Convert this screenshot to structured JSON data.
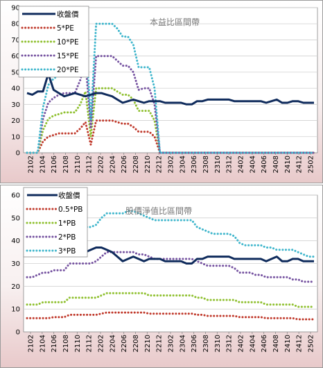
{
  "colors": {
    "close": "#0f2b5c",
    "m1": "#c0392b",
    "m2": "#8fc02f",
    "m3": "#7552a0",
    "m4": "#3fb6cc",
    "bg_top": "#ffffff",
    "bg_bottom": "#e8c9ca"
  },
  "chart_data": [
    {
      "type": "line",
      "title": "本益比區間帶",
      "xlabel": "",
      "ylabel": "",
      "ylim": [
        0,
        90
      ],
      "yticks": [
        "0",
        "10",
        "20",
        "30",
        "40",
        "50",
        "60",
        "70",
        "80",
        "90"
      ],
      "xticks": [
        "2102",
        "2104",
        "2106",
        "2108",
        "2110",
        "2112",
        "2202",
        "2204",
        "2206",
        "2208",
        "2210",
        "2212",
        "2302",
        "2304",
        "2306",
        "2308",
        "2310",
        "2312",
        "2402",
        "2404",
        "2406",
        "2408",
        "2410",
        "2412",
        "2502"
      ],
      "legend_position": "top-left",
      "grid": true,
      "series": [
        {
          "name": "收盤價",
          "color_key": "close",
          "style": "solid",
          "values": [
            37,
            36,
            38,
            38,
            49,
            39,
            37,
            35,
            36,
            37,
            36,
            35,
            36,
            37,
            37,
            36,
            35,
            33,
            31,
            32,
            33,
            32,
            31,
            32,
            32,
            32,
            31,
            31,
            31,
            31,
            30,
            30,
            32,
            32,
            33,
            33,
            33,
            33,
            33,
            32,
            32,
            32,
            32,
            32,
            32,
            31,
            32,
            33,
            31,
            31,
            32,
            32,
            31,
            31,
            31
          ]
        },
        {
          "name": "5*PE",
          "color_key": "m1",
          "style": "dot",
          "values": [
            0,
            0,
            0,
            7,
            10,
            11,
            12,
            12,
            12,
            12,
            15,
            19,
            5,
            20,
            20,
            20,
            20,
            19,
            18,
            18,
            16,
            13,
            13,
            13,
            10,
            0,
            0,
            0,
            0,
            0,
            0,
            0,
            0,
            0,
            0,
            0,
            0,
            0,
            0,
            0,
            0,
            0,
            0,
            0,
            0,
            0,
            0,
            0,
            0,
            0,
            0,
            0,
            0,
            0,
            0
          ]
        },
        {
          "name": "10*PE",
          "color_key": "m2",
          "style": "dot",
          "values": [
            0,
            0,
            0,
            14,
            21,
            23,
            24,
            25,
            25,
            25,
            30,
            38,
            10,
            40,
            40,
            40,
            40,
            38,
            36,
            36,
            33,
            26,
            26,
            26,
            20,
            0,
            0,
            0,
            0,
            0,
            0,
            0,
            0,
            0,
            0,
            0,
            0,
            0,
            0,
            0,
            0,
            0,
            0,
            0,
            0,
            0,
            0,
            0,
            0,
            0,
            0,
            0,
            0,
            0,
            0
          ]
        },
        {
          "name": "15*PE",
          "color_key": "m3",
          "style": "dot",
          "values": [
            0,
            0,
            0,
            21,
            31,
            34,
            36,
            37,
            37,
            37,
            45,
            57,
            15,
            60,
            60,
            60,
            60,
            57,
            54,
            54,
            50,
            39,
            40,
            40,
            30,
            0,
            0,
            0,
            0,
            0,
            0,
            0,
            0,
            0,
            0,
            0,
            0,
            0,
            0,
            0,
            0,
            0,
            0,
            0,
            0,
            0,
            0,
            0,
            0,
            0,
            0,
            0,
            0,
            0,
            0
          ]
        },
        {
          "name": "20*PE",
          "color_key": "m4",
          "style": "dot",
          "values": [
            0,
            0,
            0,
            28,
            42,
            46,
            48,
            50,
            50,
            50,
            60,
            76,
            20,
            80,
            80,
            80,
            80,
            77,
            72,
            72,
            67,
            53,
            53,
            53,
            40,
            0,
            0,
            0,
            0,
            0,
            0,
            0,
            0,
            0,
            0,
            0,
            0,
            0,
            0,
            0,
            0,
            0,
            0,
            0,
            0,
            0,
            0,
            0,
            0,
            0,
            0,
            0,
            0,
            0,
            0
          ]
        }
      ]
    },
    {
      "type": "line",
      "title": "股價淨值比區間帶",
      "xlabel": "",
      "ylabel": "",
      "ylim": [
        0,
        60
      ],
      "yticks": [
        "0",
        "10",
        "20",
        "30",
        "40",
        "50",
        "60"
      ],
      "xticks": [
        "2102",
        "2104",
        "2106",
        "2108",
        "2110",
        "2112",
        "2202",
        "2204",
        "2206",
        "2208",
        "2210",
        "2212",
        "2302",
        "2304",
        "2306",
        "2308",
        "2310",
        "2312",
        "2402",
        "2404",
        "2406",
        "2408",
        "2410",
        "2412",
        "2502"
      ],
      "legend_position": "top-left",
      "grid": true,
      "series": [
        {
          "name": "收盤價",
          "color_key": "close",
          "style": "solid",
          "values": [
            37,
            36,
            38,
            38,
            49,
            39,
            37,
            35,
            36,
            37,
            36,
            35,
            36,
            37,
            37,
            36,
            35,
            33,
            31,
            32,
            33,
            32,
            31,
            32,
            32,
            32,
            31,
            31,
            31,
            31,
            30,
            30,
            32,
            32,
            33,
            33,
            33,
            33,
            33,
            32,
            32,
            32,
            32,
            32,
            32,
            31,
            32,
            33,
            31,
            31,
            32,
            32,
            31,
            31,
            31
          ]
        },
        {
          "name": "0.5*PB",
          "color_key": "m1",
          "style": "dot",
          "values": [
            6,
            6,
            6,
            6,
            6,
            6.5,
            6.5,
            6.5,
            7.5,
            7.5,
            7.5,
            7.5,
            7.5,
            7.5,
            8,
            8.5,
            8.5,
            8.5,
            8.5,
            8.5,
            8.5,
            8.5,
            8.5,
            8,
            8,
            8,
            8,
            8,
            8,
            8,
            8,
            8,
            7.5,
            7.5,
            7,
            7,
            7,
            7,
            7,
            7,
            6.5,
            6.5,
            6.5,
            6.5,
            6.5,
            6,
            6,
            6,
            6,
            6,
            6,
            5.5,
            5.5,
            5.5,
            5.5
          ]
        },
        {
          "name": "1*PB",
          "color_key": "m2",
          "style": "dot",
          "values": [
            12,
            12,
            12,
            13,
            13,
            13,
            13,
            13,
            15,
            15,
            15,
            15,
            15,
            15,
            16,
            17,
            17,
            17,
            17,
            17,
            17,
            17,
            17,
            16,
            16,
            16,
            16,
            16,
            16,
            16,
            16,
            16,
            15,
            15,
            14,
            14,
            14,
            14,
            14,
            14,
            13,
            13,
            13,
            13,
            13,
            12,
            12,
            12,
            12,
            12,
            12,
            11,
            11,
            11,
            11
          ]
        },
        {
          "name": "2*PB",
          "color_key": "m3",
          "style": "dot",
          "values": [
            24,
            24,
            25,
            26,
            26,
            27,
            27,
            27,
            30,
            30,
            30,
            30,
            30,
            31,
            33,
            35,
            35,
            35,
            35,
            35,
            35,
            34,
            34,
            33,
            32,
            32,
            32,
            32,
            32,
            32,
            32,
            32,
            31,
            30,
            29,
            29,
            29,
            29,
            29,
            28,
            26,
            26,
            26,
            25,
            25,
            24,
            24,
            24,
            24,
            24,
            23,
            23,
            22,
            22,
            22
          ]
        },
        {
          "name": "3*PB",
          "color_key": "m4",
          "style": "dot",
          "values": [
            36,
            36,
            37,
            39,
            39,
            40,
            40,
            40,
            45,
            46,
            46,
            46,
            46,
            47,
            50,
            52,
            52,
            52,
            52,
            53,
            53,
            52,
            51,
            50,
            49,
            49,
            49,
            49,
            49,
            49,
            49,
            49,
            46,
            45,
            44,
            43,
            43,
            43,
            43,
            42,
            39,
            38,
            38,
            38,
            38,
            37,
            37,
            36,
            36,
            36,
            36,
            35,
            34,
            33,
            33
          ]
        }
      ]
    }
  ]
}
